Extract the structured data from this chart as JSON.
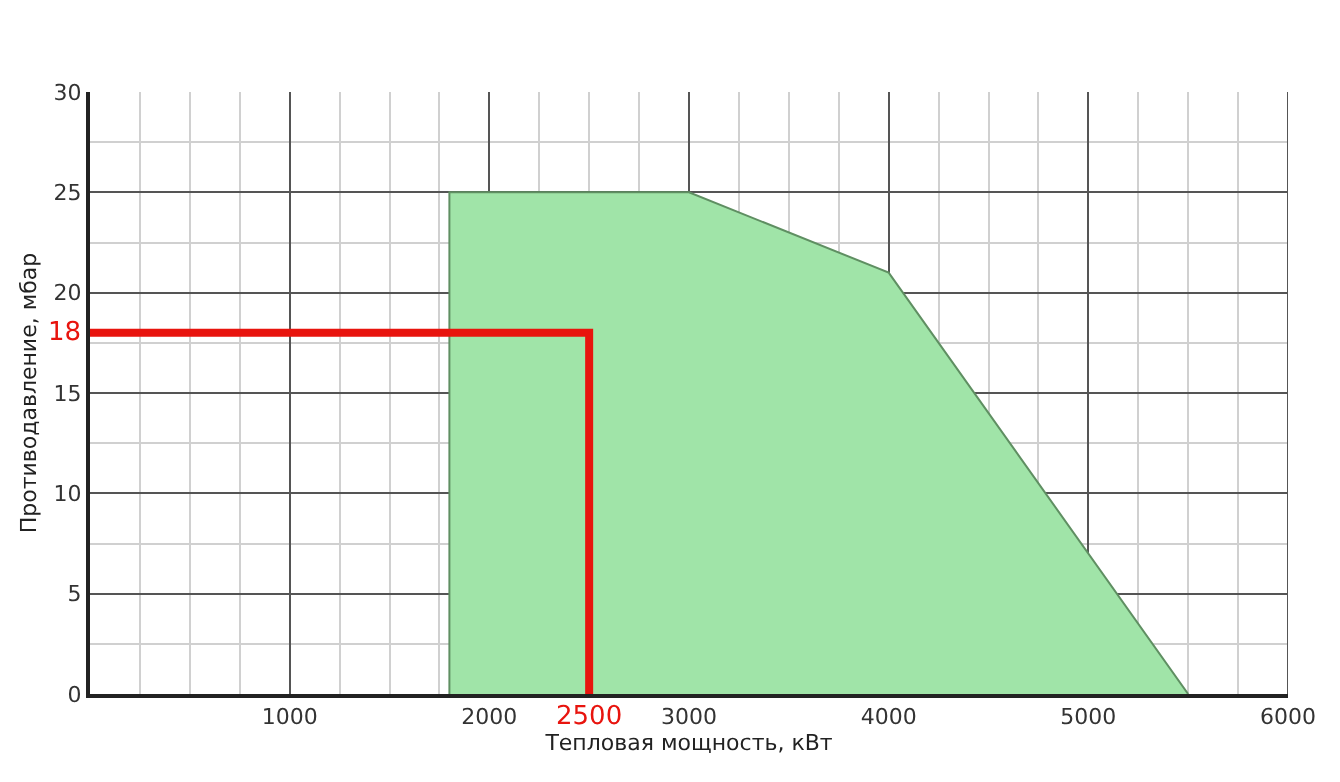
{
  "chart_data": {
    "type": "area",
    "xlabel": "Тепловая мощность, кВт",
    "ylabel": "Противодавление, мбар",
    "xlim": [
      0,
      6000
    ],
    "ylim": [
      0,
      30
    ],
    "xticks": [
      {
        "value": 0,
        "label": null
      },
      1000,
      2000,
      3000,
      4000,
      5000,
      6000
    ],
    "yticks": [
      0,
      5,
      10,
      15,
      20,
      25,
      30
    ],
    "grid": true,
    "series": [
      {
        "color": "#a0e4a8",
        "x": [
          1800,
          1800,
          3000,
          4000,
          5500
        ],
        "values": [
          0,
          25,
          25,
          21,
          0
        ]
      },
      {
        "type": "line",
        "color": "#e8140e",
        "x": [
          0,
          2500,
          2500
        ],
        "values": [
          18,
          18,
          0
        ]
      }
    ],
    "annotations": [
      {
        "text": "18",
        "x": 0,
        "y": 18
      },
      {
        "text": "2500",
        "x": 2500,
        "y": 0
      }
    ]
  }
}
